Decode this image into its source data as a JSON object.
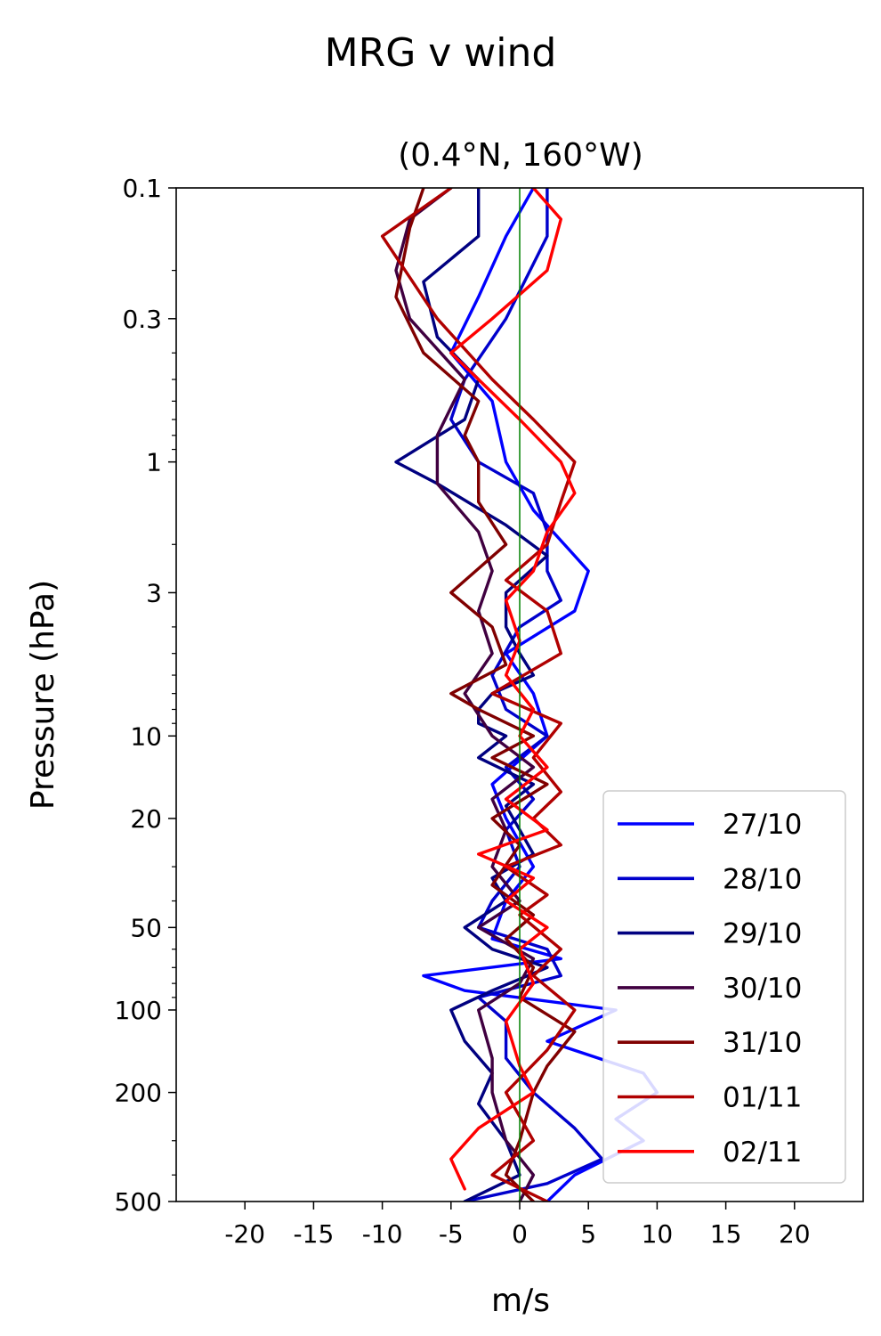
{
  "title": "MRG v wind",
  "chart_data": {
    "type": "line",
    "subtitle": "(0.4°N, 160°W)",
    "xlabel": "m/s",
    "ylabel": "Pressure (hPa)",
    "xlim": [
      -25,
      25
    ],
    "ylim": [
      500,
      0.1
    ],
    "yscale": "log",
    "x_ticks": [
      -20,
      -15,
      -10,
      -5,
      0,
      5,
      10,
      15,
      20
    ],
    "x_tick_labels": [
      "-20",
      "-15",
      "-10",
      "-5",
      "0",
      "5",
      "10",
      "15",
      "20"
    ],
    "y_ticks": [
      0.1,
      0.3,
      1,
      3,
      10,
      20,
      50,
      100,
      200,
      500
    ],
    "y_tick_labels": [
      "0.1",
      "0.3",
      "1",
      "3",
      "10",
      "20",
      "50",
      "100",
      "200",
      "500"
    ],
    "zero_line_color": "#008000",
    "legend_position": "lower right",
    "grid": false,
    "series": [
      {
        "name": "27/10",
        "color": "#0000ff",
        "p": [
          0.1,
          0.15,
          0.25,
          0.4,
          0.6,
          1.0,
          1.5,
          2.5,
          3.5,
          5,
          7,
          10,
          15,
          20,
          30,
          40,
          55,
          65,
          75,
          85,
          100,
          130,
          170,
          200,
          250,
          300,
          400,
          500
        ],
        "u": [
          1,
          -1,
          -3,
          -5,
          -2,
          -1,
          1,
          5,
          4,
          -1,
          1,
          2,
          -2,
          -1,
          1,
          -1,
          -2,
          3,
          -7,
          -4,
          7,
          2,
          9,
          10,
          7,
          9,
          4,
          2
        ]
      },
      {
        "name": "28/10",
        "color": "#0000cc",
        "p": [
          0.1,
          0.15,
          0.3,
          0.5,
          0.7,
          1.0,
          1.3,
          1.8,
          2.5,
          3.2,
          4,
          6,
          8,
          10,
          13,
          17,
          22,
          30,
          40,
          50,
          60,
          75,
          90,
          110,
          150,
          200,
          270,
          350,
          430,
          500
        ],
        "u": [
          2,
          2,
          -1,
          -4,
          -5,
          -3,
          1,
          2,
          2,
          3,
          0,
          -2,
          -1,
          2,
          -1,
          1,
          -1,
          0,
          -2,
          -3,
          2,
          3,
          -3,
          -1,
          -1,
          1,
          4,
          6,
          2,
          -4
        ]
      },
      {
        "name": "29/10",
        "color": "#000080",
        "p": [
          0.1,
          0.15,
          0.22,
          0.35,
          0.5,
          0.7,
          1.0,
          1.2,
          1.7,
          2.2,
          3,
          4,
          5,
          6,
          7,
          8,
          9,
          10,
          12,
          15,
          18,
          22,
          27,
          33,
          40,
          50,
          60,
          70,
          85,
          100,
          130,
          170,
          220,
          300,
          400,
          500
        ],
        "u": [
          -3,
          -3,
          -7,
          -6,
          -3,
          -4,
          -9,
          -6,
          -1,
          2,
          -1,
          -1,
          0,
          1,
          -2,
          -3,
          -3,
          -1,
          -3,
          1,
          -1,
          0,
          1,
          -2,
          -1,
          -4,
          -2,
          2,
          -2,
          -5,
          -4,
          -2,
          -3,
          -1,
          0,
          -4
        ]
      },
      {
        "name": "30/10",
        "color": "#400040",
        "p": [
          0.1,
          0.13,
          0.2,
          0.3,
          0.5,
          0.8,
          1.2,
          1.8,
          2.5,
          3.5,
          5,
          7,
          10,
          13,
          17,
          22,
          30,
          40,
          50,
          65,
          80,
          100,
          150,
          200,
          300,
          400,
          500
        ],
        "u": [
          -5,
          -8,
          -9,
          -8,
          -4,
          -6,
          -6,
          -3,
          -2,
          -3,
          -2,
          -4,
          -2,
          1,
          -2,
          -1,
          -2,
          0,
          -3,
          1,
          0,
          -3,
          -2,
          -2,
          -1,
          1,
          0
        ]
      },
      {
        "name": "31/10",
        "color": "#800000",
        "p": [
          0.1,
          0.14,
          0.25,
          0.4,
          0.6,
          0.8,
          1.0,
          1.4,
          2.0,
          3.0,
          4.0,
          5.5,
          7.0,
          8.0,
          10,
          12,
          15,
          20,
          25,
          35,
          45,
          55,
          70,
          90,
          120,
          160,
          200,
          300,
          400,
          500
        ],
        "u": [
          -7,
          -8,
          -9,
          -7,
          -3,
          -4,
          -3,
          -3,
          -1,
          -5,
          -2,
          -1,
          -5,
          -3,
          1,
          -2,
          2,
          -2,
          0,
          -2,
          1,
          -1,
          1,
          0,
          4,
          2,
          1,
          0,
          -1,
          1
        ]
      },
      {
        "name": "01/11",
        "color": "#b00000",
        "p": [
          0.1,
          0.15,
          0.3,
          0.5,
          0.7,
          1.0,
          1.4,
          2,
          2.7,
          3.5,
          5,
          7,
          9,
          12,
          16,
          20,
          25,
          30,
          38,
          45,
          60,
          75,
          100,
          140,
          200,
          300,
          400,
          500
        ],
        "u": [
          -5,
          -10,
          -6,
          -2,
          1,
          4,
          3,
          2,
          -1,
          2,
          3,
          -2,
          3,
          1,
          3,
          1,
          3,
          -1,
          2,
          0,
          3,
          1,
          4,
          2,
          -1,
          1,
          -2,
          2
        ]
      },
      {
        "name": "02/11",
        "color": "#ff0000",
        "p": [
          0.1,
          0.13,
          0.2,
          0.3,
          0.4,
          0.5,
          0.7,
          1.0,
          1.3,
          1.8,
          2.5,
          3.2,
          4.5,
          6,
          8,
          10,
          13,
          17,
          22,
          27,
          33,
          40,
          50,
          60,
          80,
          110,
          160,
          200,
          270,
          350,
          450
        ],
        "u": [
          1,
          3,
          2,
          -2,
          -5,
          -3,
          0,
          3,
          4,
          2,
          1,
          -1,
          0,
          -1,
          1,
          0,
          2,
          -1,
          2,
          -3,
          1,
          -1,
          2,
          0,
          1,
          -1,
          0,
          1,
          -3,
          -5,
          -4
        ]
      }
    ]
  }
}
